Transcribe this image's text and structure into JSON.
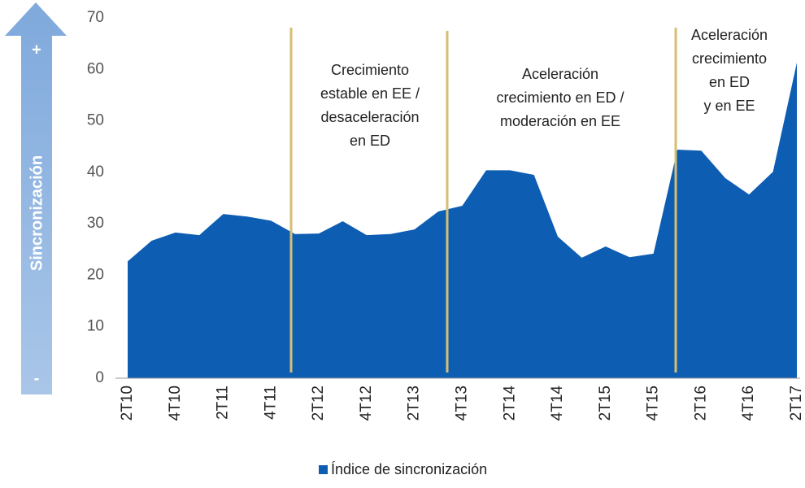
{
  "chart_data": {
    "type": "area",
    "y_label": "Sincronización",
    "arrow_top": "+",
    "arrow_bottom": "-",
    "categories": [
      "2T10",
      null,
      "4T10",
      null,
      "2T11",
      null,
      "4T11",
      null,
      "2T12",
      null,
      "4T12",
      null,
      "2T13",
      null,
      "4T13",
      null,
      "2T14",
      null,
      "4T14",
      null,
      "2T15",
      null,
      "4T15",
      null,
      "2T16",
      null,
      "4T16",
      null,
      "2T17"
    ],
    "series": [
      {
        "name": "Índice de sincronización",
        "color": "#0d5db3",
        "values": [
          22.7,
          26.7,
          28.3,
          27.8,
          31.9,
          31.4,
          30.6,
          28.0,
          28.1,
          30.5,
          27.8,
          28.0,
          28.9,
          32.4,
          33.5,
          40.4,
          40.4,
          39.5,
          27.5,
          23.4,
          25.6,
          23.5,
          24.2,
          44.4,
          44.2,
          38.9,
          35.7,
          40.1,
          61.3
        ]
      }
    ],
    "ylim": [
      0,
      70
    ],
    "yticks": [
      0,
      10,
      20,
      30,
      40,
      50,
      60,
      70
    ],
    "annotations": [
      [
        "Crecimiento",
        "estable en EE /",
        "desaceleración",
        "en ED"
      ],
      [
        "Aceleración",
        "crecimiento en ED /",
        "moderación en EE"
      ],
      [
        "Aceleración",
        "crecimiento",
        "en ED",
        "y en EE"
      ]
    ]
  }
}
